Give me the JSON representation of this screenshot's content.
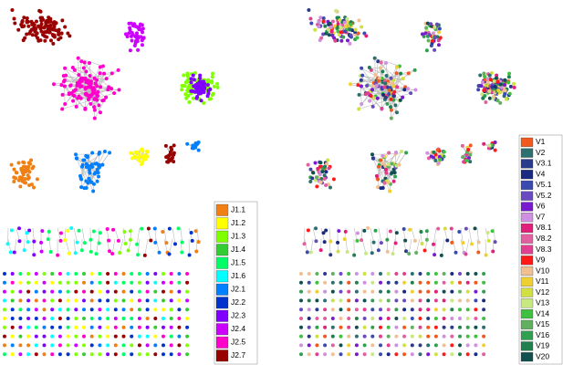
{
  "left_legend": {
    "items": [
      {
        "label": "J1.1",
        "color": "#f07f14"
      },
      {
        "label": "J1.2",
        "color": "#ffff00"
      },
      {
        "label": "J1.3",
        "color": "#80ff00"
      },
      {
        "label": "J1.4",
        "color": "#33cc33"
      },
      {
        "label": "J1.5",
        "color": "#00ff66"
      },
      {
        "label": "J1.6",
        "color": "#00ffff"
      },
      {
        "label": "J2.1",
        "color": "#0080ff"
      },
      {
        "label": "J2.2",
        "color": "#0033cc"
      },
      {
        "label": "J2.3",
        "color": "#8000ff"
      },
      {
        "label": "J2.4",
        "color": "#cc00ff"
      },
      {
        "label": "J2.5",
        "color": "#ff00cc"
      },
      {
        "label": "J2.7",
        "color": "#990000"
      }
    ]
  },
  "right_legend": {
    "items": [
      {
        "label": "V1",
        "color": "#f05a1e"
      },
      {
        "label": "V2",
        "color": "#2d6e6e"
      },
      {
        "label": "V3.1",
        "color": "#2a3a8c"
      },
      {
        "label": "V4",
        "color": "#1a2a80"
      },
      {
        "label": "V5.1",
        "color": "#3a4ab0"
      },
      {
        "label": "V5.2",
        "color": "#6a4ac0"
      },
      {
        "label": "V6",
        "color": "#7a1ad0"
      },
      {
        "label": "V7",
        "color": "#d090e0"
      },
      {
        "label": "V8.1",
        "color": "#e0207a"
      },
      {
        "label": "V8.2",
        "color": "#e060a0"
      },
      {
        "label": "V8.3",
        "color": "#e04090"
      },
      {
        "label": "V9",
        "color": "#ff1a1a"
      },
      {
        "label": "V10",
        "color": "#f0c090"
      },
      {
        "label": "V11",
        "color": "#f0d030"
      },
      {
        "label": "V12",
        "color": "#d0e040"
      },
      {
        "label": "V13",
        "color": "#c8e880"
      },
      {
        "label": "V14",
        "color": "#40c040"
      },
      {
        "label": "V15",
        "color": "#60b060"
      },
      {
        "label": "V16",
        "color": "#30a050"
      },
      {
        "label": "V19",
        "color": "#208050"
      },
      {
        "label": "V20",
        "color": "#105050"
      }
    ]
  }
}
